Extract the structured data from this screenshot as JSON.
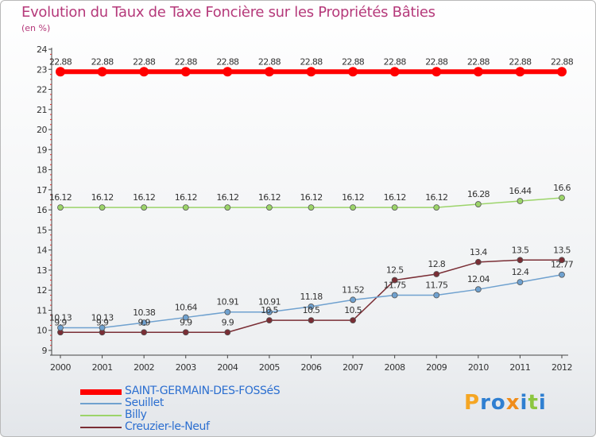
{
  "chart_data": {
    "type": "line",
    "title": "Evolution du Taux de Taxe Foncière sur les Propriétés Bâties",
    "ylabel": "(en %)",
    "xlabel": "",
    "ylim": [
      9,
      24
    ],
    "yticks": [
      9,
      10,
      11,
      12,
      13,
      14,
      15,
      16,
      17,
      18,
      19,
      20,
      21,
      22,
      23,
      24
    ],
    "x": [
      "2000",
      "2001",
      "2002",
      "2003",
      "2004",
      "2005",
      "2006",
      "2007",
      "2008",
      "2009",
      "2010",
      "2011",
      "2012"
    ],
    "grid": false,
    "legend_position": "bottom-left",
    "series": [
      {
        "name": "SAINT-GERMAIN-DES-FOSSéS",
        "color": "#ff0000",
        "values": [
          22.88,
          22.88,
          22.88,
          22.88,
          22.88,
          22.88,
          22.88,
          22.88,
          22.88,
          22.88,
          22.88,
          22.88,
          22.88
        ],
        "labels": [
          "22.88",
          "22.88",
          "22.88",
          "22.88",
          "22.88",
          "22.88",
          "22.88",
          "22.88",
          "22.88",
          "22.88",
          "22.88",
          "22.88",
          "22.88"
        ]
      },
      {
        "name": "Seuillet",
        "color": "#6fa1cf",
        "values": [
          10.13,
          10.13,
          10.38,
          10.64,
          10.91,
          10.91,
          11.18,
          11.52,
          11.75,
          11.75,
          12.04,
          12.4,
          12.77
        ],
        "labels": [
          "10.13",
          "10.13",
          "10.38",
          "10.64",
          "10.91",
          "10.91",
          "11.18",
          "11.52",
          "11.75",
          "11.75",
          "12.04",
          "12.4",
          "12.77"
        ]
      },
      {
        "name": "Billy",
        "color": "#9cd46a",
        "values": [
          16.12,
          16.12,
          16.12,
          16.12,
          16.12,
          16.12,
          16.12,
          16.12,
          16.12,
          16.12,
          16.28,
          16.44,
          16.6
        ],
        "labels": [
          "16.12",
          "16.12",
          "16.12",
          "16.12",
          "16.12",
          "16.12",
          "16.12",
          "16.12",
          "16.12",
          "16.12",
          "16.28",
          "16.44",
          "16.6"
        ]
      },
      {
        "name": "Creuzier-le-Neuf",
        "color": "#7a2e35",
        "values": [
          9.9,
          9.9,
          9.9,
          9.9,
          9.9,
          10.5,
          10.5,
          10.5,
          12.5,
          12.8,
          13.4,
          13.5,
          13.5
        ],
        "labels": [
          "9.9",
          "9.9",
          "9.9",
          "9.9",
          "9.9",
          "10.5",
          "10.5",
          "10.5",
          "12.5",
          "12.8",
          "13.4",
          "13.5",
          "13.5"
        ]
      }
    ]
  },
  "logo": {
    "text": "Proxiti",
    "letters": [
      "P",
      "r",
      "o",
      "x",
      "i",
      "t",
      "i"
    ],
    "colors": [
      "#f5a623",
      "#2f7fd1",
      "#2f7fd1",
      "#f08c1a",
      "#2f7fd1",
      "#8cc63f",
      "#2f7fd1"
    ]
  }
}
